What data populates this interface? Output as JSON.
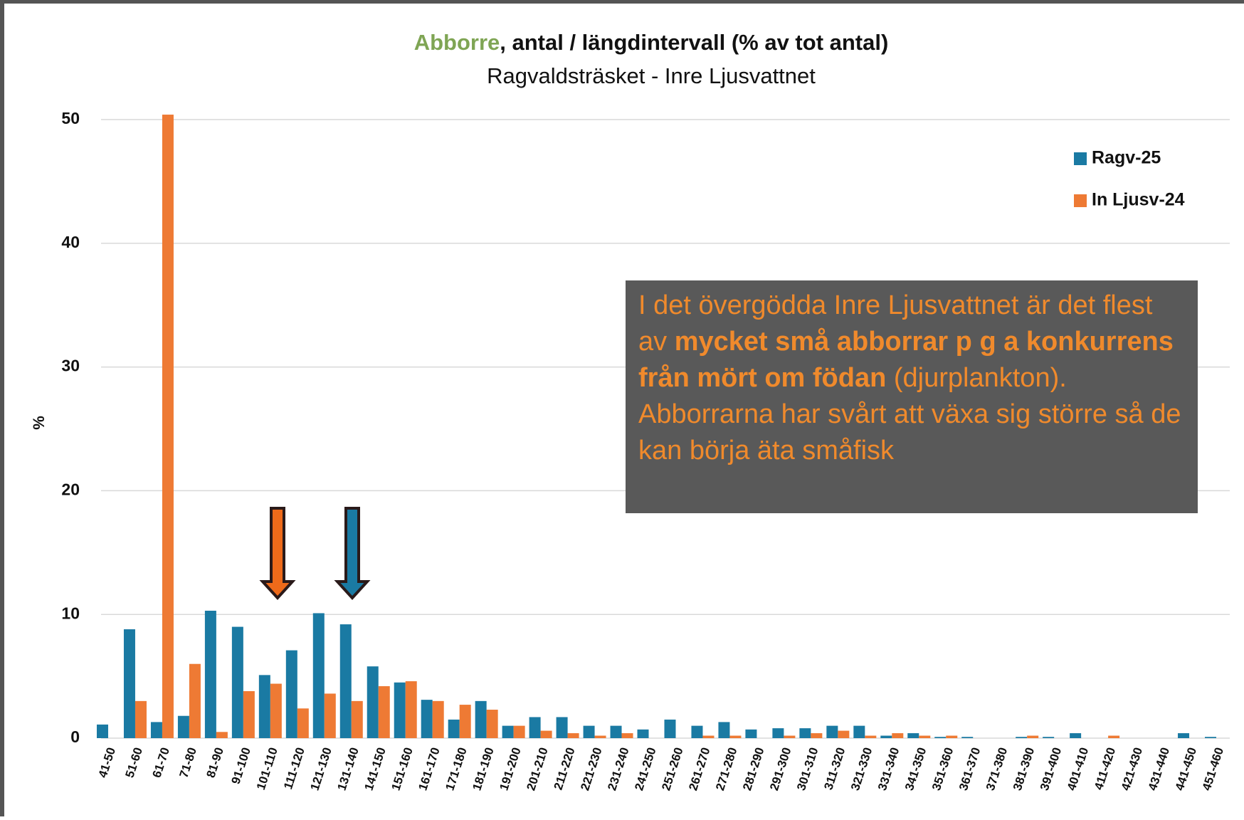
{
  "chart_data": {
    "type": "bar",
    "title_highlight": "Abborre",
    "title": ", antal / längdintervall (% av tot antal)",
    "subtitle": "Ragvaldsträsket -  Inre Ljusvattnet",
    "y_label": "%",
    "categories": [
      "41-50",
      "51-60",
      "61-70",
      "71-80",
      "81-90",
      "91-100",
      "101-110",
      "111-120",
      "121-130",
      "131-140",
      "141-150",
      "151-160",
      "161-170",
      "171-180",
      "181-190",
      "191-200",
      "201-210",
      "211-220",
      "221-230",
      "231-240",
      "241-250",
      "251-260",
      "261-270",
      "271-280",
      "281-290",
      "291-300",
      "301-310",
      "311-320",
      "321-330",
      "331-340",
      "341-350",
      "351-360",
      "361-370",
      "371-380",
      "381-390",
      "391-400",
      "401-410",
      "411-420",
      "421-430",
      "431-440",
      "441-450",
      "451-460"
    ],
    "series": [
      {
        "name": "Ragv-25",
        "color": "#1a7aa3",
        "values": [
          1.1,
          8.8,
          1.3,
          1.8,
          10.3,
          9.0,
          5.1,
          7.1,
          10.1,
          9.2,
          5.8,
          4.5,
          3.1,
          1.5,
          3.0,
          1.0,
          1.7,
          1.7,
          1.0,
          1.0,
          0.7,
          1.5,
          1.0,
          1.3,
          0.7,
          0.8,
          0.8,
          1.0,
          1.0,
          0.2,
          0.4,
          0.1,
          0.1,
          0,
          0.1,
          0.1,
          0.4,
          0,
          0,
          0,
          0.4,
          0.1
        ]
      },
      {
        "name": "In Ljusv-24",
        "color": "#ee7a34",
        "values": [
          0,
          3.0,
          50.4,
          6.0,
          0.5,
          3.8,
          4.4,
          2.4,
          3.6,
          3.0,
          4.2,
          4.6,
          3.0,
          2.7,
          2.3,
          1.0,
          0.6,
          0.4,
          0.2,
          0.4,
          0,
          0,
          0.2,
          0.2,
          0,
          0.2,
          0.4,
          0.6,
          0.2,
          0.4,
          0.2,
          0.2,
          0,
          0,
          0.2,
          0,
          0,
          0.2,
          0,
          0,
          0,
          0
        ]
      }
    ],
    "ylim": [
      0,
      50
    ],
    "yticks": [
      0,
      10,
      20,
      30,
      40,
      50
    ],
    "grid": true,
    "legend": "top-right",
    "annotation": [
      [
        {
          "text": "I det övergödda Inre Ljusvattnet är det flest av ",
          "bold": false
        },
        {
          "text": "mycket små abborrar p g a konkurrens från mört om födan",
          "bold": true
        },
        {
          "text": " (djurplankton).",
          "bold": false
        }
      ],
      [
        {
          "text": "Abborrarna har svårt att växa sig större så de kan börja äta småfisk",
          "bold": false
        }
      ]
    ]
  }
}
